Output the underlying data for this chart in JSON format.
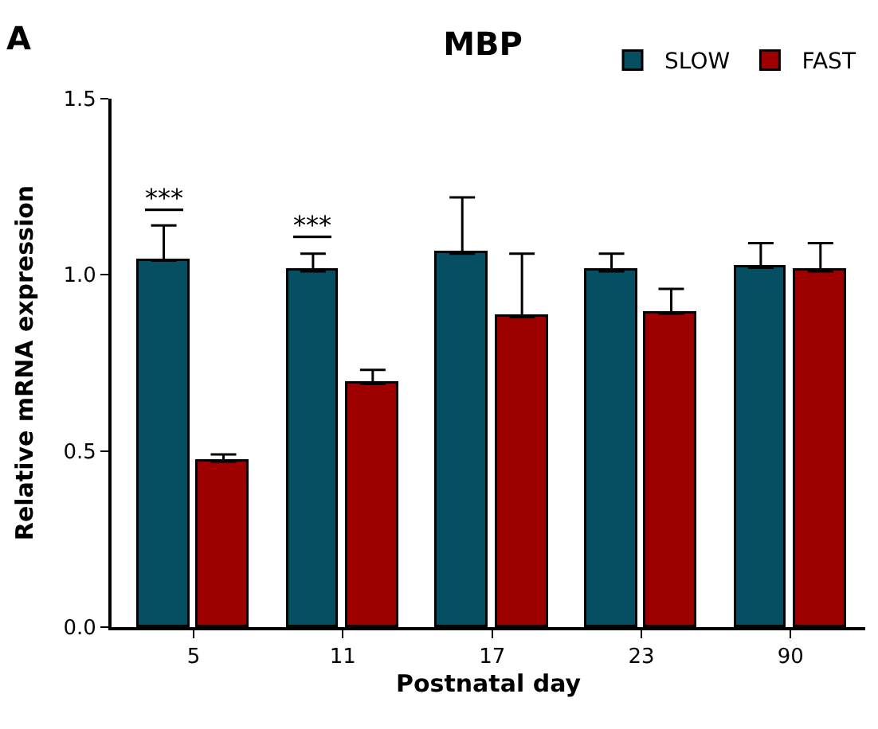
{
  "chart_data": {
    "type": "bar",
    "title": "MBP",
    "xlabel": "Postnatal day",
    "ylabel": "Relative mRNA expression",
    "categories": [
      "5",
      "11",
      "17",
      "23",
      "90"
    ],
    "series": [
      {
        "name": "SLOW",
        "color": "#064f63",
        "values": [
          1.04,
          1.01,
          1.06,
          1.01,
          1.02
        ],
        "errors": [
          [
            1.04,
            1.14
          ],
          [
            1.01,
            1.06
          ],
          [
            1.06,
            1.22
          ],
          [
            1.01,
            1.06
          ],
          [
            1.02,
            1.09
          ]
        ]
      },
      {
        "name": "FAST",
        "color": "#9e0000",
        "values": [
          0.47,
          0.69,
          0.88,
          0.89,
          1.01
        ],
        "errors": [
          [
            0.47,
            0.49
          ],
          [
            0.69,
            0.73
          ],
          [
            0.88,
            1.06
          ],
          [
            0.89,
            0.96
          ],
          [
            1.01,
            1.09
          ]
        ]
      }
    ],
    "ylim": [
      0,
      1.5
    ],
    "yticks": [
      {
        "value": 0,
        "label": "0.0"
      },
      {
        "value": 0.5,
        "label": "0.5"
      },
      {
        "value": 1,
        "label": "1.0"
      },
      {
        "value": 1.5,
        "label": "1.5"
      }
    ],
    "annotations": [
      "A",
      "***",
      "***"
    ],
    "legend": "top right"
  }
}
